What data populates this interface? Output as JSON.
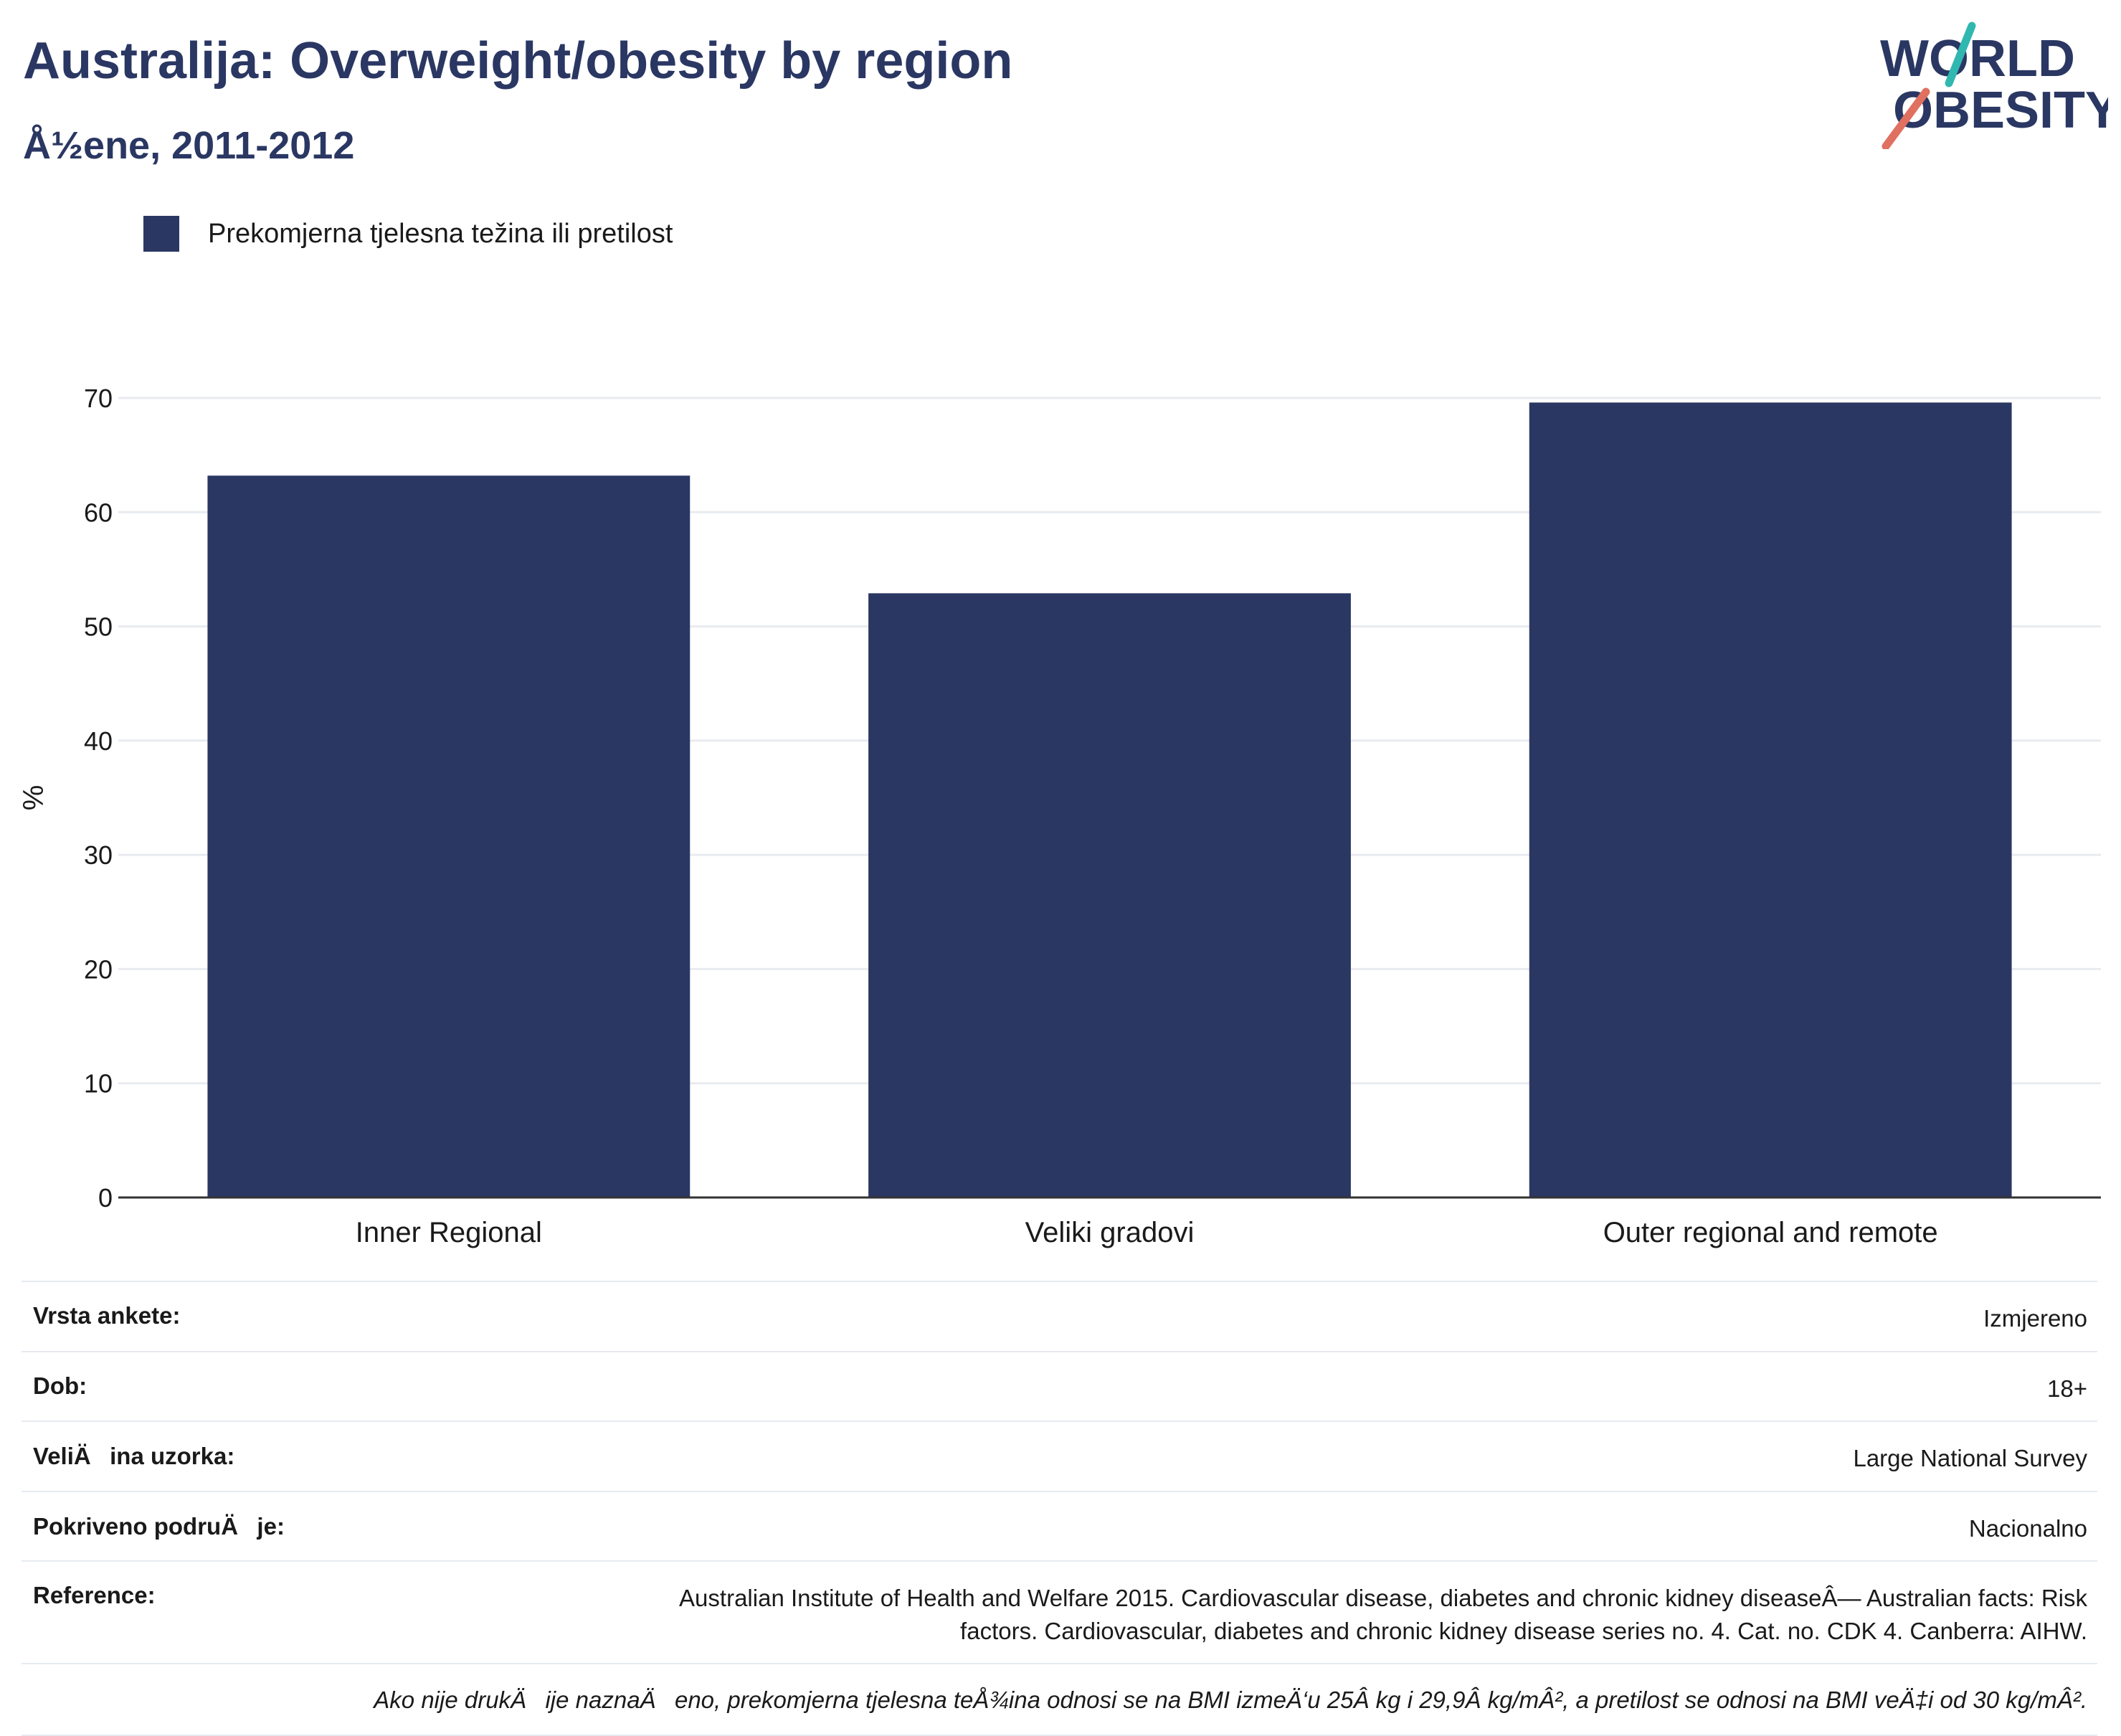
{
  "header": {
    "title": "Australija: Overweight/obesity by region",
    "subtitle": "Å½ene, 2011-2012"
  },
  "logo": {
    "line1": "WORLD",
    "line2": "OBESITY",
    "colors": {
      "text": "#2a3763",
      "accent_teal": "#2fb7b0",
      "accent_coral": "#e07060"
    }
  },
  "legend": {
    "label": "Prekomjerna tjelesna težina ili pretilost",
    "color": "#2a3763"
  },
  "chart_data": {
    "type": "bar",
    "categories": [
      "Inner Regional",
      "Veliki gradovi",
      "Outer regional and remote"
    ],
    "series": [
      {
        "name": "Prekomjerna tjelesna težina ili pretilost",
        "values": [
          63.2,
          52.9,
          69.6
        ],
        "color": "#2a3763"
      }
    ],
    "ylabel": "%",
    "ylim": [
      0,
      70
    ],
    "yticks": [
      0,
      10,
      20,
      30,
      40,
      50,
      60,
      70
    ],
    "grid": true,
    "legend_position": "top-left"
  },
  "info": {
    "rows": [
      {
        "key": "Vrsta ankete:",
        "value": "Izmjereno"
      },
      {
        "key": "Dob:",
        "value": "18+"
      },
      {
        "key": "VeliÄina uzorka:",
        "value": "Large National Survey"
      },
      {
        "key": "Pokriveno podruÄje:",
        "value": "Nacionalno"
      },
      {
        "key": "Reference:",
        "value_lines": [
          "Australian Institute of Health and Welfare 2015. Cardiovascular disease, diabetes and chronic kidney diseaseÂ— Australian facts: Risk",
          "factors. Cardiovascular, diabetes and chronic kidney disease series no. 4. Cat. no. CDK 4. Canberra: AIHW."
        ]
      }
    ],
    "note": "Ako nije drukÄije naznaÄeno, prekomjerna tjelesna teÅ¾ina odnosi se na BMI izmeÄ‘u 25Â kg i 29,9Â kg/mÂ², a pretilost se odnosi na BMI veÄ‡i od 30 kg/mÂ²."
  }
}
